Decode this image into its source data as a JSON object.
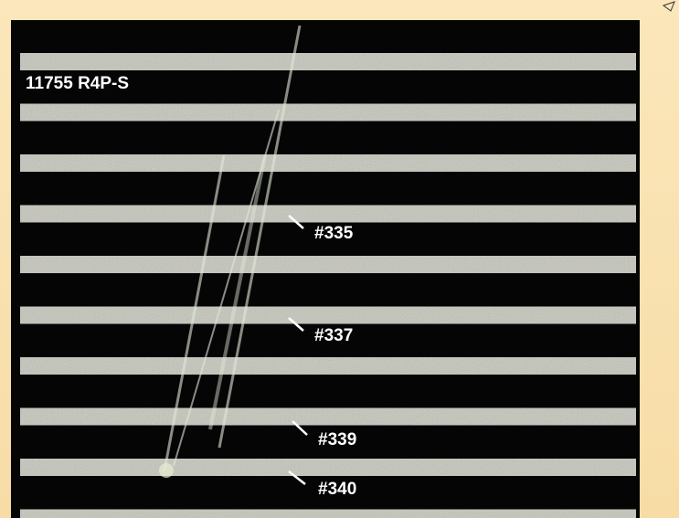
{
  "image": {
    "title": "11755 R4P-S",
    "labels": [
      "#335",
      "#337",
      "#339",
      "#340"
    ]
  }
}
